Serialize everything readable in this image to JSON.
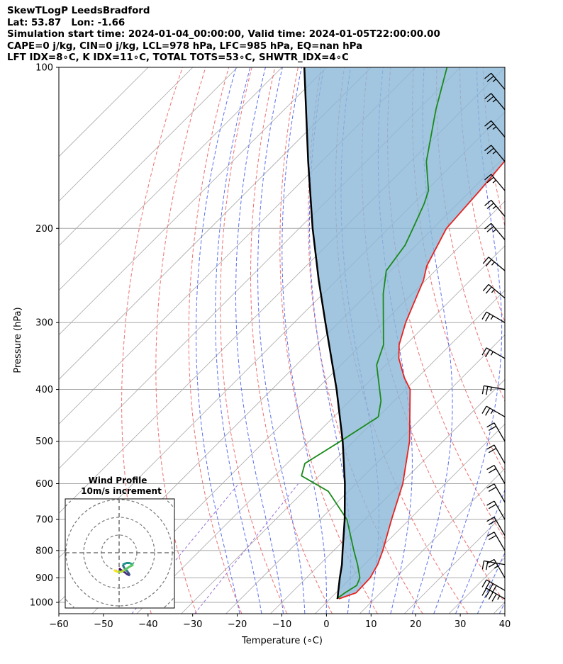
{
  "header": {
    "line1": "SkewTLogP LeedsBradford",
    "line2": "Lat: 53.87   Lon: -1.66",
    "line3": "Simulation start time: 2024-01-04_00:00:00, Valid time: 2024-01-05T22:00:00.00",
    "line4": "CAPE=0 j/kg, CIN=0 j/kg, LCL=978 hPa, LFC=985 hPa, EQ=nan hPa",
    "line5": "LFT IDX=8∘C, K IDX=11∘C, TOTAL TOTS=53∘C, SHWTR_IDX=4∘C"
  },
  "chart_data": {
    "type": "skewt",
    "xlabel": "Temperature (∘C)",
    "ylabel": "Pressure (hPa)",
    "xlim": [
      -60,
      40
    ],
    "ylim": [
      1050,
      100
    ],
    "xticks": [
      -60,
      -50,
      -40,
      -30,
      -20,
      -10,
      0,
      10,
      20,
      30,
      40
    ],
    "xtick_labels": [
      "−60",
      "−50",
      "−40",
      "−30",
      "−20",
      "−10",
      "0",
      "10",
      "20",
      "30",
      "40"
    ],
    "yticks": [
      1000,
      900,
      800,
      700,
      600,
      500,
      400,
      300,
      200,
      100
    ],
    "ytick_labels": [
      "1000",
      "900",
      "800",
      "700",
      "600",
      "500",
      "400",
      "300",
      "200",
      "100"
    ],
    "yscale": "log",
    "skew": 45,
    "colors": {
      "temperature": "#e8231f",
      "dewpoint": "#1a8a1a",
      "parcel": "#000000",
      "shading": "#8bb8d8",
      "dry_adiabat": "#f07070",
      "moist_adiabat": "#5a6ff0",
      "mixing_ratio": "#9b6fd6",
      "isotherm": "#a8a8a8"
    },
    "temperature": [
      {
        "p": 985,
        "t": 2
      },
      {
        "p": 960,
        "t": 4.5
      },
      {
        "p": 900,
        "t": 4.3
      },
      {
        "p": 850,
        "t": 3.0
      },
      {
        "p": 800,
        "t": 1.0
      },
      {
        "p": 700,
        "t": -4.0
      },
      {
        "p": 600,
        "t": -9.5
      },
      {
        "p": 500,
        "t": -17.5
      },
      {
        "p": 400,
        "t": -29.0
      },
      {
        "p": 380,
        "t": -33.0
      },
      {
        "p": 350,
        "t": -38.5
      },
      {
        "p": 330,
        "t": -41.5
      },
      {
        "p": 300,
        "t": -45.0
      },
      {
        "p": 250,
        "t": -50.5
      },
      {
        "p": 235,
        "t": -53.0
      },
      {
        "p": 200,
        "t": -57.0
      },
      {
        "p": 170,
        "t": -58.0
      },
      {
        "p": 150,
        "t": -59.0
      },
      {
        "p": 130,
        "t": -62.0
      },
      {
        "p": 115,
        "t": -65.0
      },
      {
        "p": 100,
        "t": -68.0
      }
    ],
    "dewpoint": [
      {
        "p": 985,
        "t": 1.5
      },
      {
        "p": 960,
        "t": 2.0
      },
      {
        "p": 930,
        "t": 3.0
      },
      {
        "p": 900,
        "t": 2.0
      },
      {
        "p": 850,
        "t": -1.5
      },
      {
        "p": 800,
        "t": -5.5
      },
      {
        "p": 700,
        "t": -14.0
      },
      {
        "p": 620,
        "t": -24.5
      },
      {
        "p": 580,
        "t": -34.0
      },
      {
        "p": 550,
        "t": -36.0
      },
      {
        "p": 500,
        "t": -33.0
      },
      {
        "p": 450,
        "t": -30.0
      },
      {
        "p": 420,
        "t": -33.0
      },
      {
        "p": 360,
        "t": -42.0
      },
      {
        "p": 330,
        "t": -45.0
      },
      {
        "p": 300,
        "t": -50.0
      },
      {
        "p": 265,
        "t": -56.5
      },
      {
        "p": 240,
        "t": -61.0
      },
      {
        "p": 215,
        "t": -62.5
      },
      {
        "p": 200,
        "t": -64.5
      },
      {
        "p": 180,
        "t": -67.5
      },
      {
        "p": 170,
        "t": -69.5
      },
      {
        "p": 150,
        "t": -76.5
      },
      {
        "p": 120,
        "t": -86.0
      },
      {
        "p": 100,
        "t": -93.0
      }
    ],
    "parcel": [
      {
        "p": 985,
        "t": 1.7
      },
      {
        "p": 950,
        "t": 0.0
      },
      {
        "p": 900,
        "t": -2.5
      },
      {
        "p": 850,
        "t": -5.0
      },
      {
        "p": 800,
        "t": -8.0
      },
      {
        "p": 700,
        "t": -14.5
      },
      {
        "p": 600,
        "t": -22.5
      },
      {
        "p": 500,
        "t": -32.5
      },
      {
        "p": 400,
        "t": -45.5
      },
      {
        "p": 300,
        "t": -63.0
      },
      {
        "p": 250,
        "t": -74.0
      },
      {
        "p": 200,
        "t": -87.0
      },
      {
        "p": 150,
        "t": -103.0
      },
      {
        "p": 100,
        "t": -125.0
      }
    ],
    "wind_barbs": [
      {
        "p": 985,
        "speed_kt": 45,
        "dir": 300
      },
      {
        "p": 950,
        "speed_kt": 40,
        "dir": 300
      },
      {
        "p": 900,
        "speed_kt": 25,
        "dir": 330
      },
      {
        "p": 850,
        "speed_kt": 20,
        "dir": 280
      },
      {
        "p": 800,
        "speed_kt": 20,
        "dir": 330
      },
      {
        "p": 750,
        "speed_kt": 20,
        "dir": 330
      },
      {
        "p": 700,
        "speed_kt": 20,
        "dir": 330
      },
      {
        "p": 650,
        "speed_kt": 20,
        "dir": 330
      },
      {
        "p": 600,
        "speed_kt": 20,
        "dir": 330
      },
      {
        "p": 550,
        "speed_kt": 20,
        "dir": 330
      },
      {
        "p": 500,
        "speed_kt": 20,
        "dir": 330
      },
      {
        "p": 450,
        "speed_kt": 25,
        "dir": 300
      },
      {
        "p": 400,
        "speed_kt": 25,
        "dir": 280
      },
      {
        "p": 350,
        "speed_kt": 25,
        "dir": 300
      },
      {
        "p": 300,
        "speed_kt": 25,
        "dir": 300
      },
      {
        "p": 270,
        "speed_kt": 25,
        "dir": 310
      },
      {
        "p": 240,
        "speed_kt": 25,
        "dir": 310
      },
      {
        "p": 210,
        "speed_kt": 25,
        "dir": 320
      },
      {
        "p": 190,
        "speed_kt": 25,
        "dir": 320
      },
      {
        "p": 170,
        "speed_kt": 25,
        "dir": 320
      },
      {
        "p": 150,
        "speed_kt": 25,
        "dir": 320
      },
      {
        "p": 135,
        "speed_kt": 25,
        "dir": 320
      },
      {
        "p": 120,
        "speed_kt": 25,
        "dir": 320
      },
      {
        "p": 110,
        "speed_kt": 25,
        "dir": 320
      }
    ],
    "inset": {
      "title": "Wind Profile",
      "subtitle": "10m/s increment",
      "hodograph": [
        {
          "u": 0,
          "v": 0
        },
        {
          "u": 1,
          "v": -1
        },
        {
          "u": 3,
          "v": -2
        },
        {
          "u": 4,
          "v": -3
        },
        {
          "u": 6,
          "v": -4
        },
        {
          "u": 5,
          "v": -2
        },
        {
          "u": 3,
          "v": 0
        },
        {
          "u": 2,
          "v": 2
        },
        {
          "u": 4,
          "v": 3
        },
        {
          "u": 6,
          "v": 3
        },
        {
          "u": 8,
          "v": 2
        },
        {
          "u": 6,
          "v": 1
        },
        {
          "u": 3,
          "v": -1
        },
        {
          "u": 1,
          "v": -2
        },
        {
          "u": -1,
          "v": -2
        },
        {
          "u": -3,
          "v": -1
        }
      ]
    }
  }
}
